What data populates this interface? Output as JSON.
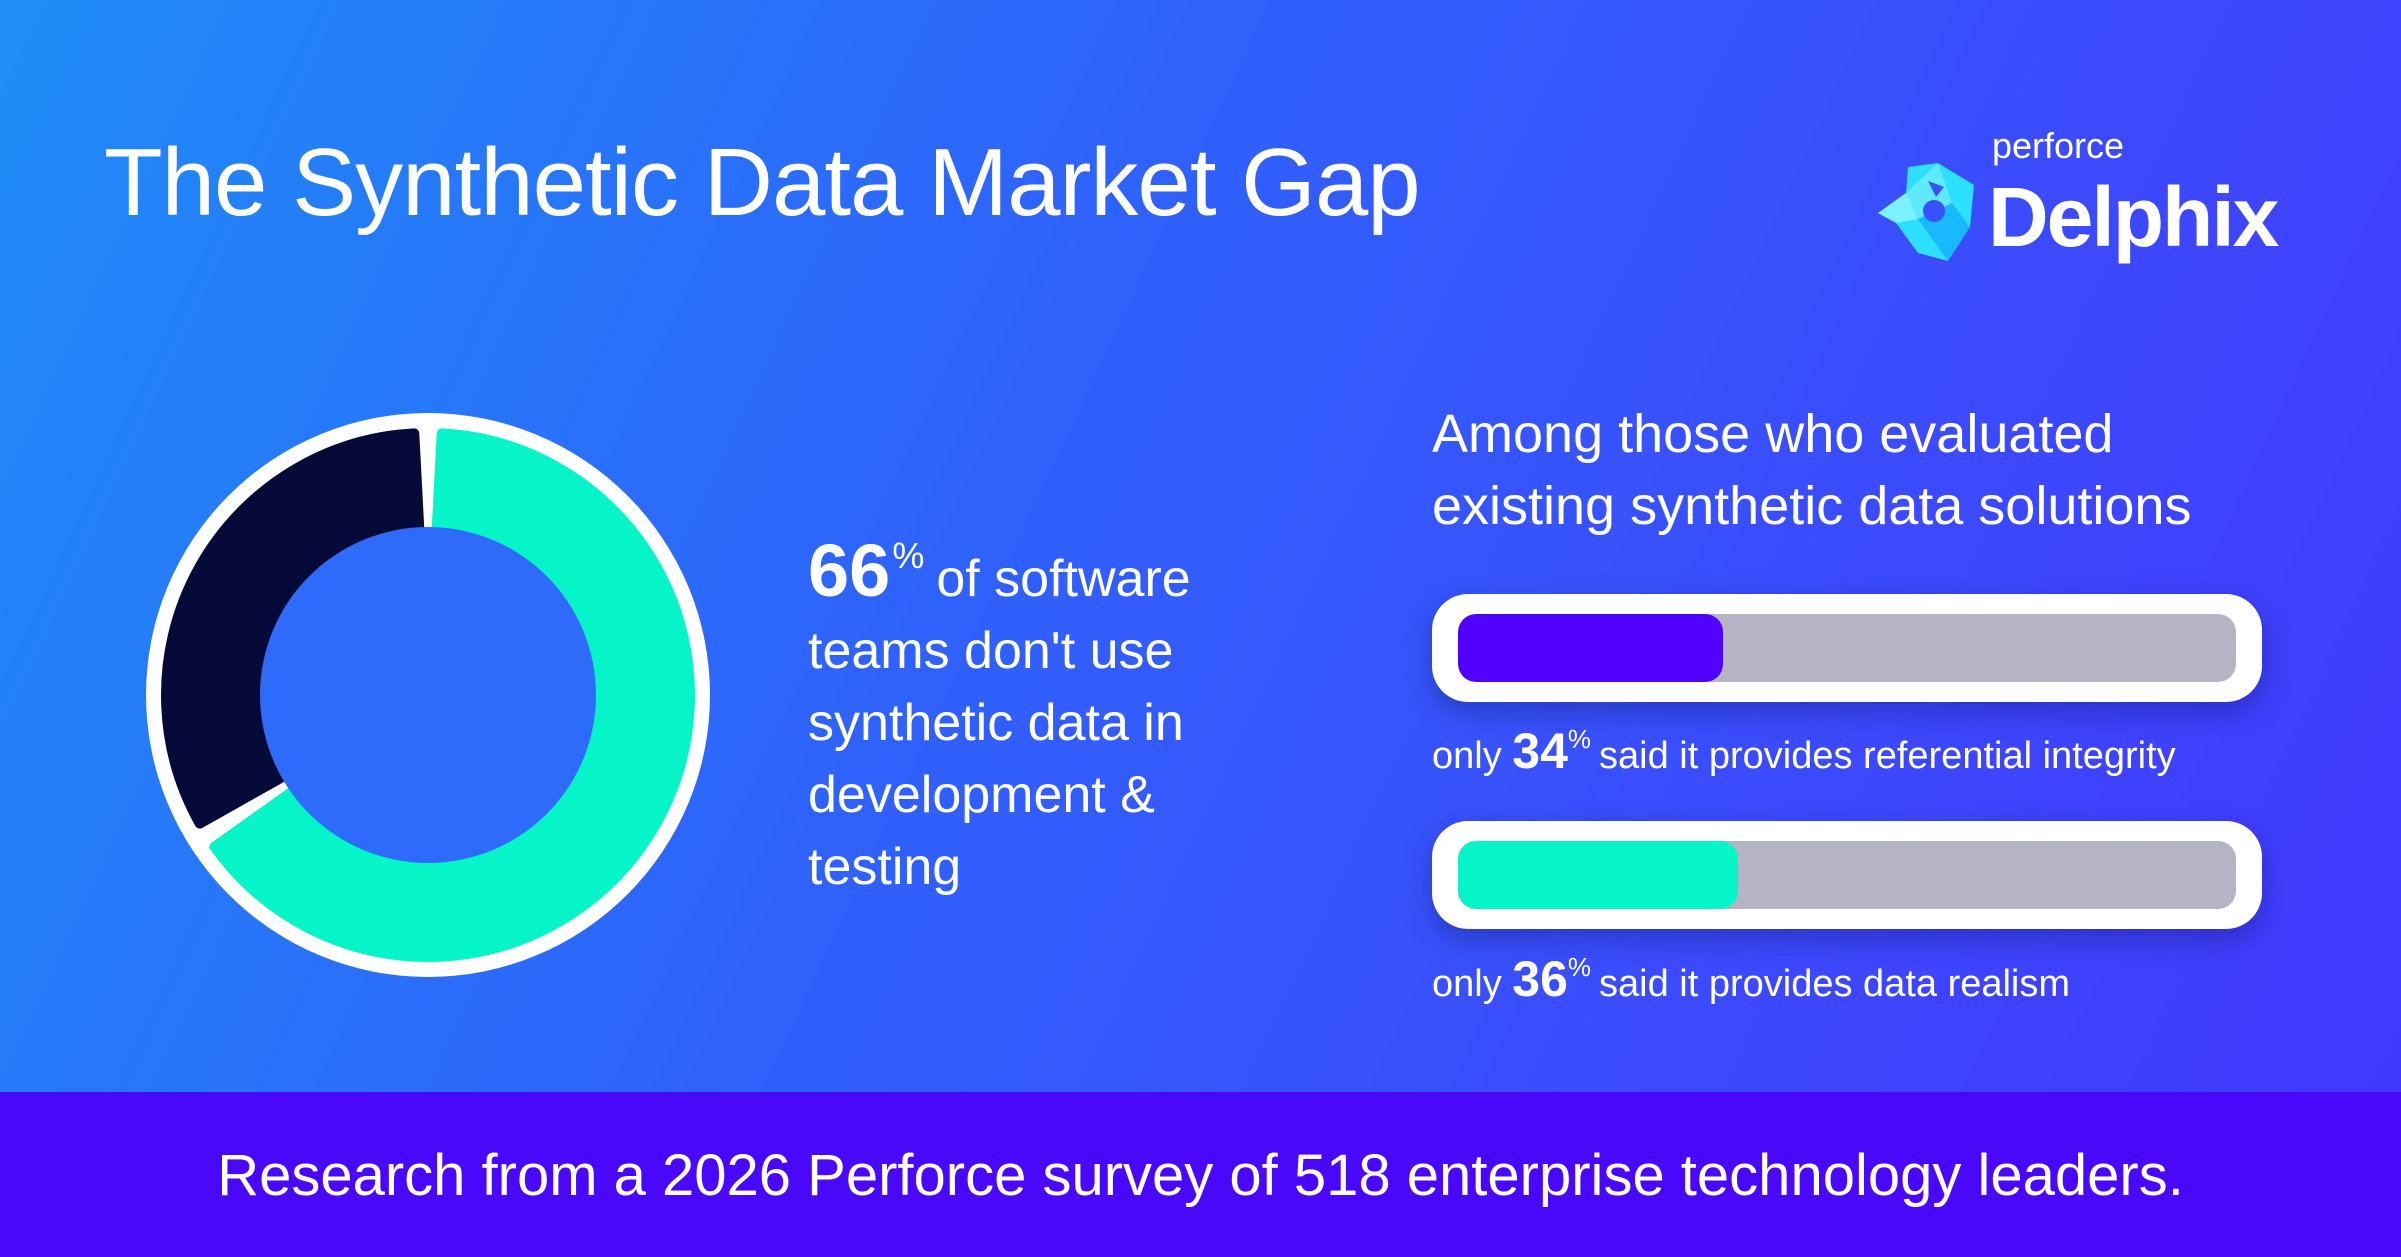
{
  "title": "The Synthetic Data Market Gap",
  "logo": {
    "small": "perforce",
    "big": "Delphix"
  },
  "colors": {
    "teal": "#06f5c8",
    "navy": "#060a38",
    "violet": "#5200ff",
    "track": "#b4b4c4",
    "footer": "#4a08fb"
  },
  "chart_data": [
    {
      "type": "pie",
      "values": [
        66,
        34
      ],
      "colors": [
        "#06f5c8",
        "#060a38"
      ],
      "title": ""
    },
    {
      "type": "bar",
      "title": "",
      "categories": [
        "referential integrity",
        "data realism"
      ],
      "values": [
        34,
        36
      ],
      "xlim": [
        0,
        100
      ],
      "colors": [
        "#5200ff",
        "#06f5c8"
      ]
    }
  ],
  "donut_stat": {
    "value": "66",
    "unit": "%",
    "lines": [
      "of software",
      "teams don't use",
      "synthetic data in",
      "development &",
      "testing"
    ]
  },
  "evaluation": {
    "heading_lines": [
      "Among those who evaluated",
      "existing synthetic data solutions"
    ],
    "bars": [
      {
        "prefix": "only",
        "value": "34",
        "unit": "%",
        "suffix": "said it provides referential integrity"
      },
      {
        "prefix": "only",
        "value": "36",
        "unit": "%",
        "suffix": "said it provides data realism"
      }
    ]
  },
  "footer": "Research from a 2026 Perforce survey of 518 enterprise technology leaders."
}
